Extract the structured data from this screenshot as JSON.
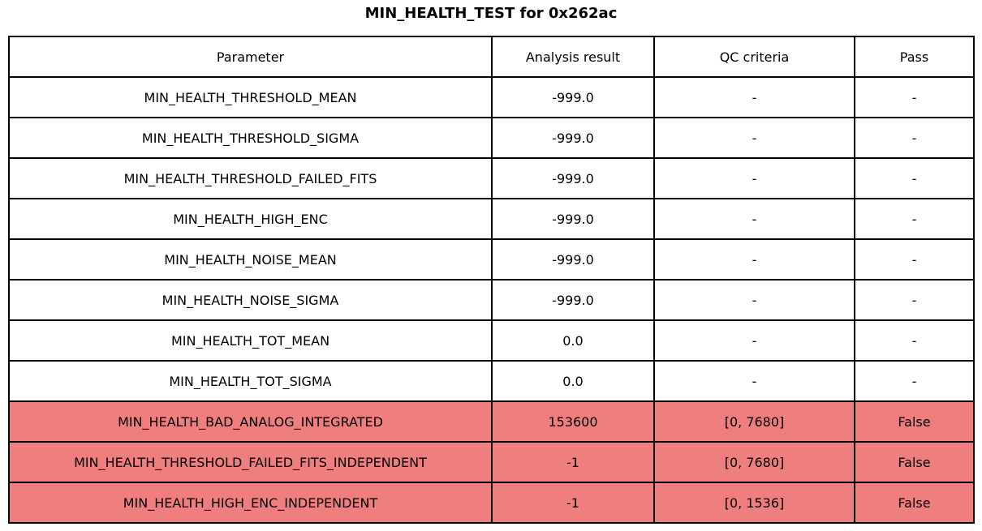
{
  "title": "MIN_HEALTH_TEST for 0x262ac",
  "colors": {
    "fail_row_bg": "#ef7f7f",
    "pass_row_bg": "#ffffff",
    "border": "#000000",
    "text": "#000000"
  },
  "chart_data": {
    "type": "table",
    "title": "MIN_HEALTH_TEST for 0x262ac",
    "columns": [
      "Parameter",
      "Analysis result",
      "QC criteria",
      "Pass"
    ],
    "rows": [
      [
        "MIN_HEALTH_THRESHOLD_MEAN",
        "-999.0",
        "-",
        "-"
      ],
      [
        "MIN_HEALTH_THRESHOLD_SIGMA",
        "-999.0",
        "-",
        "-"
      ],
      [
        "MIN_HEALTH_THRESHOLD_FAILED_FITS",
        "-999.0",
        "-",
        "-"
      ],
      [
        "MIN_HEALTH_HIGH_ENC",
        "-999.0",
        "-",
        "-"
      ],
      [
        "MIN_HEALTH_NOISE_MEAN",
        "-999.0",
        "-",
        "-"
      ],
      [
        "MIN_HEALTH_NOISE_SIGMA",
        "-999.0",
        "-",
        "-"
      ],
      [
        "MIN_HEALTH_TOT_MEAN",
        "0.0",
        "-",
        "-"
      ],
      [
        "MIN_HEALTH_TOT_SIGMA",
        "0.0",
        "-",
        "-"
      ],
      [
        "MIN_HEALTH_BAD_ANALOG_INTEGRATED",
        "153600",
        "[0, 7680]",
        "False"
      ],
      [
        "MIN_HEALTH_THRESHOLD_FAILED_FITS_INDEPENDENT",
        "-1",
        "[0, 7680]",
        "False"
      ],
      [
        "MIN_HEALTH_HIGH_ENC_INDEPENDENT",
        "-1",
        "[0, 1536]",
        "False"
      ]
    ],
    "row_highlight": [
      false,
      false,
      false,
      false,
      false,
      false,
      false,
      false,
      true,
      true,
      true
    ],
    "highlight_meaning": "failed QC check",
    "layout": {
      "grid": true,
      "header_row": true,
      "cell_text_align": "center"
    }
  }
}
